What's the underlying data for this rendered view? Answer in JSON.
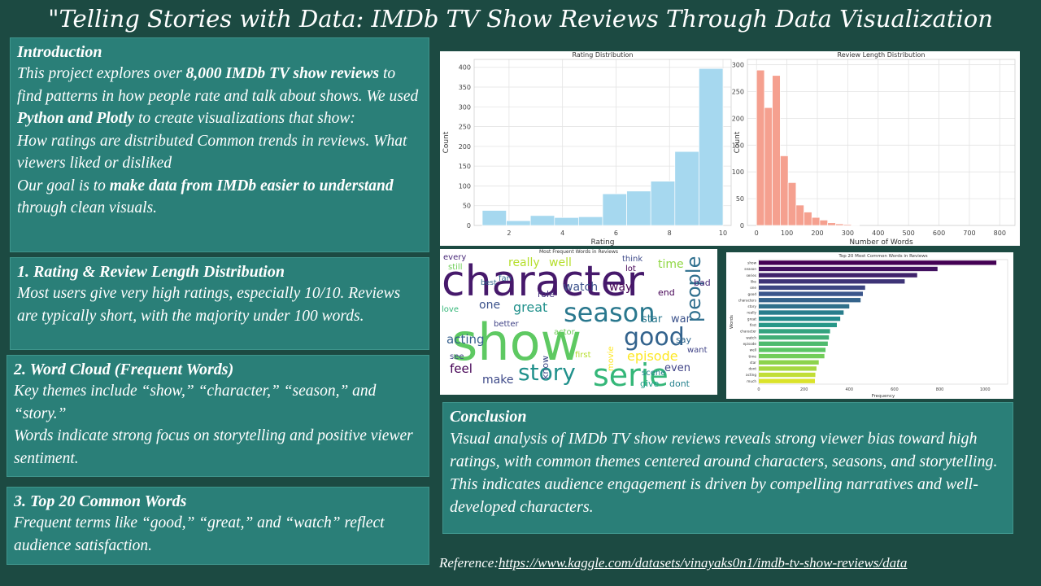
{
  "title": "\"Telling Stories with Data: IMDb TV Show Reviews Through Data Visualization",
  "intro": {
    "heading": "Introduction",
    "t1": "This project explores over ",
    "b1": "8,000 IMDb TV show reviews",
    "t2": " to find patterns in how people rate and talk about shows. We used ",
    "b2": "Python and Plotly",
    "t3": " to create visualizations that show:",
    "line2": "How ratings are distributed Common trends in reviews. What viewers liked or disliked",
    "t4": "Our goal is to ",
    "b3": "make data from IMDb easier to understand",
    "t5": " through clean visuals."
  },
  "sec1": {
    "heading": "1. Rating & Review Length Distribution",
    "body": "Most users give very high ratings, especially 10/10. Reviews are typically short, with the majority under 100 words."
  },
  "sec2": {
    "heading": "2. Word Cloud (Frequent Words)",
    "body1": "Key themes include “show,” “character,” “season,” and “story.”",
    "body2": "Words indicate strong focus on storytelling and positive viewer sentiment."
  },
  "sec3": {
    "heading": "3. Top 20 Common Words",
    "body": "Frequent terms like “good,” “great,” and “watch” reflect audience satisfaction."
  },
  "conclusion": {
    "heading": "Conclusion",
    "body1": "Visual analysis of IMDb TV show reviews reveals strong viewer bias toward high ratings, with common themes centered around characters, seasons, and storytelling.",
    "body2": "This indicates audience engagement is driven by compelling narratives and well-developed characters."
  },
  "reference": {
    "label": "Reference:",
    "link": "https://www.kaggle.com/datasets/vinayaks0n1/imdb-tv-show-reviews/data"
  },
  "colors": {
    "rating_bar": "#a6d8ef",
    "length_bar": "#f5a08f",
    "grid": "#e3e3e3"
  },
  "chart_data": [
    {
      "type": "bar",
      "title": "Rating Distribution",
      "xlabel": "Rating",
      "ylabel": "Count",
      "xlim": [
        1,
        10
      ],
      "ylim": [
        0,
        420
      ],
      "xticks": [
        2,
        4,
        6,
        8,
        10
      ],
      "yticks": [
        0,
        50,
        100,
        150,
        200,
        250,
        300,
        350,
        400
      ],
      "bins": [
        {
          "x0": 1.0,
          "x1": 1.9,
          "value": 38
        },
        {
          "x0": 1.9,
          "x1": 2.8,
          "value": 12
        },
        {
          "x0": 2.8,
          "x1": 3.7,
          "value": 25
        },
        {
          "x0": 3.7,
          "x1": 4.6,
          "value": 20
        },
        {
          "x0": 4.6,
          "x1": 5.5,
          "value": 22
        },
        {
          "x0": 5.5,
          "x1": 6.4,
          "value": 80
        },
        {
          "x0": 6.4,
          "x1": 7.3,
          "value": 87
        },
        {
          "x0": 7.3,
          "x1": 8.2,
          "value": 112
        },
        {
          "x0": 8.2,
          "x1": 9.1,
          "value": 187
        },
        {
          "x0": 9.1,
          "x1": 10.0,
          "value": 397
        }
      ]
    },
    {
      "type": "bar",
      "title": "Review Length Distribution",
      "xlabel": "Number of Words",
      "ylabel": "Count",
      "xlim": [
        -30,
        850
      ],
      "ylim": [
        0,
        310
      ],
      "xticks": [
        0,
        100,
        200,
        300,
        400,
        500,
        600,
        700,
        800
      ],
      "yticks": [
        0,
        50,
        100,
        150,
        200,
        250,
        300
      ],
      "bin_width": 26,
      "bin_start": 0,
      "values": [
        290,
        220,
        280,
        130,
        80,
        38,
        25,
        15,
        10,
        5,
        3,
        2,
        1
      ]
    },
    {
      "type": "wordcloud",
      "title": "Most Frequent Words in Reviews",
      "words": [
        {
          "text": "character",
          "color": "#46196b"
        },
        {
          "text": "show",
          "color": "#5ec962"
        },
        {
          "text": "season",
          "color": "#2a788e"
        },
        {
          "text": "good",
          "color": "#33638d"
        },
        {
          "text": "story",
          "color": "#21918c"
        },
        {
          "text": "serie",
          "color": "#35b779"
        },
        {
          "text": "episode",
          "color": "#fde725"
        },
        {
          "text": "people",
          "color": "#2f6f8e"
        },
        {
          "text": "really",
          "color": "#b5de2b"
        },
        {
          "text": "well",
          "color": "#b5de2b"
        },
        {
          "text": "watch",
          "color": "#3b528b"
        },
        {
          "text": "time",
          "color": "#90d743"
        },
        {
          "text": "one",
          "color": "#3b528b"
        },
        {
          "text": "great",
          "color": "#21918c"
        },
        {
          "text": "acting",
          "color": "#355f8d"
        },
        {
          "text": "make",
          "color": "#3e4a89"
        },
        {
          "text": "feel",
          "color": "#440154"
        },
        {
          "text": "even",
          "color": "#414487"
        },
        {
          "text": "way",
          "color": "#440154"
        },
        {
          "text": "star",
          "color": "#2a788e"
        },
        {
          "text": "war",
          "color": "#3b528b"
        },
        {
          "text": "love",
          "color": "#35b779"
        },
        {
          "text": "every",
          "color": "#482878"
        },
        {
          "text": "still",
          "color": "#6ece58"
        },
        {
          "text": "think",
          "color": "#3e4a89"
        },
        {
          "text": "lot",
          "color": "#440154"
        },
        {
          "text": "end",
          "color": "#440154"
        },
        {
          "text": "role",
          "color": "#46337e"
        },
        {
          "text": "bad",
          "color": "#482878"
        },
        {
          "text": "say",
          "color": "#31688e"
        },
        {
          "text": "dont",
          "color": "#26828e"
        },
        {
          "text": "give",
          "color": "#1f9e89"
        },
        {
          "text": "know",
          "color": "#3e4a89"
        },
        {
          "text": "better",
          "color": "#414487"
        },
        {
          "text": "actor",
          "color": "#6ece58"
        },
        {
          "text": "first",
          "color": "#b5de2b"
        },
        {
          "text": "scene",
          "color": "#26828e"
        },
        {
          "text": "movie",
          "color": "#fde725"
        },
        {
          "text": "want",
          "color": "#414487"
        },
        {
          "text": "see",
          "color": "#414487"
        },
        {
          "text": "best",
          "color": "#31688e"
        },
        {
          "text": "fan",
          "color": "#31688e"
        }
      ]
    },
    {
      "type": "bar",
      "orientation": "horizontal",
      "title": "Top 20 Most Common Words in Reviews",
      "xlabel": "Frequency",
      "ylabel": "Words",
      "xlim": [
        0,
        1100
      ],
      "xticks": [
        0,
        200,
        400,
        600,
        800,
        1000
      ],
      "categories": [
        "show",
        "season",
        "series",
        "like",
        "one",
        "good",
        "characters",
        "story",
        "really",
        "great",
        "first",
        "character",
        "watch",
        "episode",
        "well",
        "time",
        "star",
        "dont",
        "acting",
        "much"
      ],
      "values": [
        1050,
        790,
        700,
        645,
        470,
        460,
        450,
        400,
        375,
        360,
        345,
        315,
        310,
        305,
        295,
        290,
        265,
        255,
        250,
        248
      ]
    }
  ]
}
